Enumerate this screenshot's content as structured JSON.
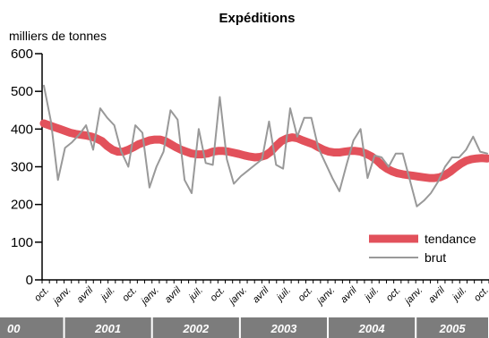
{
  "chart_data": {
    "type": "line",
    "title": "Expéditions",
    "ylabel": "milliers de tonnes",
    "ylim": [
      0,
      600
    ],
    "yticks": [
      0,
      100,
      200,
      300,
      400,
      500,
      600
    ],
    "x_tick_labels": [
      "oct.",
      "janv.",
      "avril",
      "juil.",
      "oct.",
      "janv.",
      "avril",
      "juil.",
      "oct.",
      "janv.",
      "avril",
      "juil.",
      "oct.",
      "janv.",
      "avril",
      "juil.",
      "oct.",
      "janv.",
      "avril",
      "juil.",
      "oct.",
      "janv.",
      "avril",
      "juil."
    ],
    "year_bands": [
      {
        "label": "00",
        "months": 3
      },
      {
        "label": "2001",
        "months": 12
      },
      {
        "label": "2002",
        "months": 12
      },
      {
        "label": "2003",
        "months": 12
      },
      {
        "label": "2004",
        "months": 12
      },
      {
        "label": "2005",
        "months": 10
      }
    ],
    "series": [
      {
        "name": "tendance",
        "color": "#e2515b",
        "values": [
          415,
          410,
          405,
          400,
          395,
          390,
          387,
          385,
          383,
          380,
          375,
          368,
          355,
          345,
          340,
          340,
          345,
          352,
          360,
          365,
          370,
          372,
          372,
          368,
          360,
          352,
          345,
          340,
          335,
          333,
          333,
          335,
          340,
          342,
          342,
          340,
          337,
          334,
          330,
          327,
          325,
          326,
          330,
          340,
          355,
          368,
          375,
          378,
          376,
          370,
          365,
          360,
          352,
          345,
          340,
          338,
          338,
          340,
          342,
          342,
          340,
          335,
          328,
          318,
          305,
          295,
          288,
          283,
          280,
          278,
          276,
          274,
          272,
          270,
          270,
          272,
          278,
          287,
          298,
          308,
          316,
          320,
          322,
          323,
          322
        ]
      },
      {
        "name": "brut",
        "color": "#999999",
        "values": [
          515,
          420,
          265,
          350,
          365,
          385,
          410,
          345,
          455,
          430,
          410,
          340,
          300,
          410,
          390,
          245,
          300,
          340,
          450,
          425,
          265,
          230,
          400,
          310,
          305,
          485,
          320,
          255,
          275,
          290,
          305,
          320,
          420,
          305,
          295,
          455,
          380,
          430,
          430,
          350,
          310,
          270,
          235,
          305,
          370,
          400,
          270,
          330,
          325,
          300,
          335,
          335,
          265,
          195,
          210,
          230,
          260,
          300,
          325,
          325,
          345,
          380,
          340,
          335
        ]
      }
    ],
    "legend_position": "bottom-right"
  }
}
